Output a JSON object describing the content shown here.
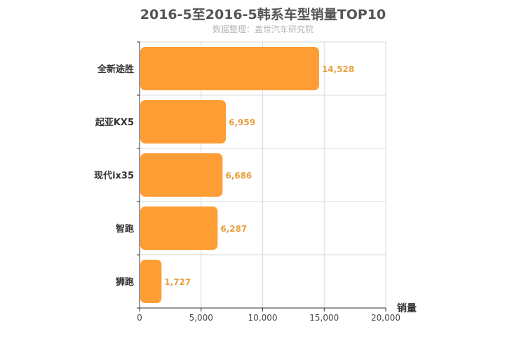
{
  "header": {
    "title": "2016-5至2016-5韩系车型销量TOP10",
    "subtitle": "数据整理：盖世汽车研究院"
  },
  "colors": {
    "bar": "#ff9d35",
    "value_label": "#e8a040",
    "axis_text": "#444444",
    "grid": "#d9d9d9"
  },
  "chart_data": {
    "type": "bar",
    "orientation": "horizontal",
    "title": "2016-5至2016-5韩系车型销量TOP10",
    "subtitle": "数据整理：盖世汽车研究院",
    "categories": [
      "全新途胜",
      "起亚KX5",
      "现代ix35",
      "智跑",
      "狮跑"
    ],
    "values": [
      14528,
      6959,
      6686,
      6287,
      1727
    ],
    "value_labels": [
      "14,528",
      "6,959",
      "6,686",
      "6,287",
      "1,727"
    ],
    "xlabel": "销量",
    "ylabel": "",
    "xlim": [
      0,
      20000
    ],
    "x_ticks": [
      0,
      5000,
      10000,
      15000,
      20000
    ],
    "x_tick_labels": [
      "0",
      "5,000",
      "10,000",
      "15,000",
      "20,000"
    ],
    "grid": true
  }
}
